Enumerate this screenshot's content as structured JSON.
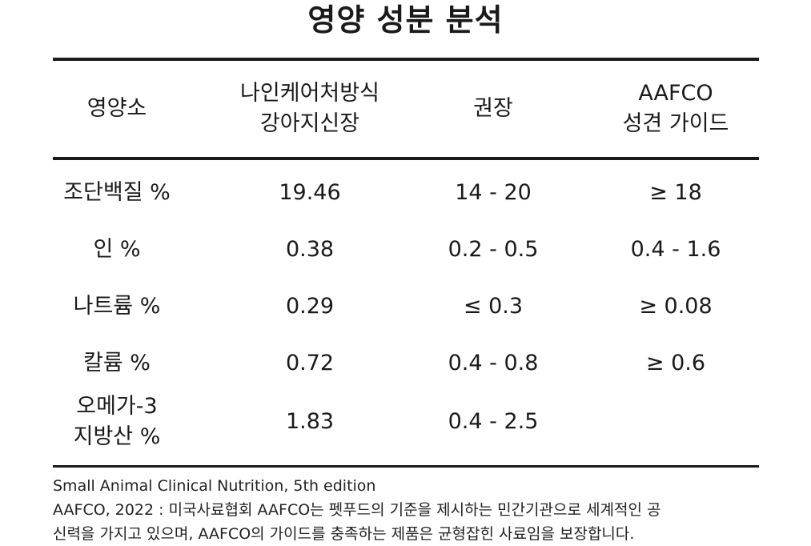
{
  "title": "영양 성분 분석",
  "table": {
    "headers": [
      "영양소",
      "나인케어처방식\n강아지신장",
      "권장",
      "AAFCO\n성견 가이드"
    ],
    "rows": [
      [
        "조단백질 %",
        "19.46",
        "14 - 20",
        "≥ 18"
      ],
      [
        "인 %",
        "0.38",
        "0.2 - 0.5",
        "0.4 - 1.6"
      ],
      [
        "나트륨 %",
        "0.29",
        "≤ 0.3",
        "≥ 0.08"
      ],
      [
        "칼륨 %",
        "0.72",
        "0.4 - 0.8",
        "≥ 0.6"
      ],
      [
        "오메가-3\n지방산 %",
        "1.83",
        "0.4 - 2.5",
        ""
      ]
    ]
  },
  "notes": [
    "Small Animal Clinical Nutrition, 5th edition",
    "AAFCO, 2022 : 미국사료협회 AAFCO는 펫푸드의 기준을 제시하는 민간기관으로 세계적인 공",
    "신력을 가지고 있으며, AAFCO의 가이드를 충족하는 제품은 균형잡힌 사료임을 보장합니다."
  ]
}
